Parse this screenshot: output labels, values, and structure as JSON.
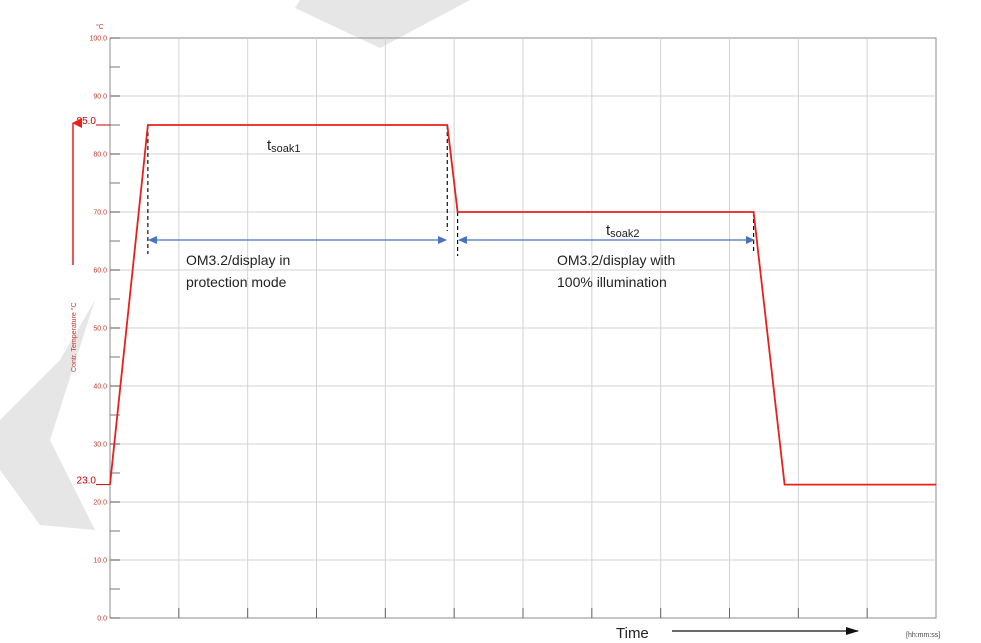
{
  "chart_data": {
    "type": "line",
    "y_unit": "°C",
    "ylabel": "Contr. Temperature °C",
    "xlabel": "Time",
    "x_unit": "[hh:mm:ss]",
    "ylim": [
      0,
      100
    ],
    "y_ticks": [
      "0.0",
      "10.0",
      "20.0",
      "30.0",
      "40.0",
      "50.0",
      "60.0",
      "70.0",
      "80.0",
      "90.0",
      "100.0"
    ],
    "y_highlight_ticks": [
      {
        "value": 85,
        "label": "85.0"
      },
      {
        "value": 23,
        "label": "23.0"
      }
    ],
    "grid": true,
    "x_divisions": 12,
    "series": [
      {
        "color": "#e8201c",
        "points": [
          [
            0.0,
            23
          ],
          [
            0.55,
            85
          ],
          [
            4.9,
            85
          ],
          [
            5.05,
            70
          ],
          [
            9.35,
            70
          ],
          [
            9.8,
            23
          ],
          [
            12.0,
            23
          ]
        ]
      }
    ],
    "annotations": {
      "soak1": {
        "main": "t",
        "sub": "soak1"
      },
      "soak2": {
        "main": "t",
        "sub": "soak2"
      },
      "phase1_line1": "OM3.2/display in",
      "phase1_line2": "protection mode",
      "phase2_line1": "OM3.2/display with",
      "phase2_line2": "100% illumination"
    }
  }
}
